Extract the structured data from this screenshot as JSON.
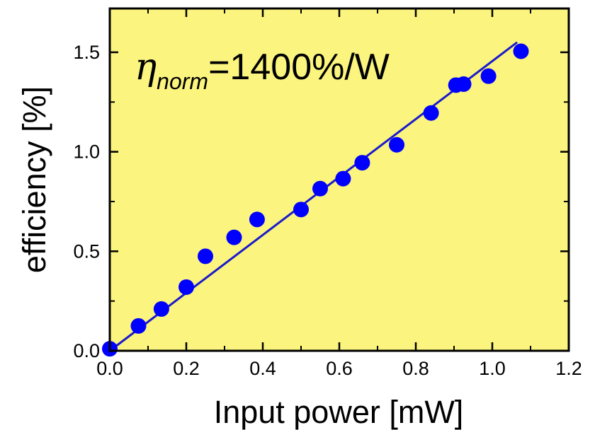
{
  "chart_data": {
    "type": "scatter",
    "xlabel": "Input power [mW]",
    "ylabel": "efficiency [%]",
    "xlim": [
      0.0,
      1.2
    ],
    "ylim": [
      0.0,
      1.72
    ],
    "xticks": [
      "0.0",
      "0.2",
      "0.4",
      "0.6",
      "0.8",
      "1.0",
      "1.2"
    ],
    "yticks": [
      "0.0",
      "0.5",
      "1.0",
      "1.5"
    ],
    "grid": false,
    "background_color": "#fbf47e",
    "marker_color": "#0000ff",
    "line_color": "#1a1acc",
    "annotation": {
      "symbol": "η",
      "subscript": "norm",
      "text": "=1400%/W"
    },
    "points": [
      {
        "x": 0.0,
        "y": 0.01
      },
      {
        "x": 0.075,
        "y": 0.125
      },
      {
        "x": 0.135,
        "y": 0.21
      },
      {
        "x": 0.2,
        "y": 0.32
      },
      {
        "x": 0.25,
        "y": 0.475
      },
      {
        "x": 0.325,
        "y": 0.57
      },
      {
        "x": 0.385,
        "y": 0.66
      },
      {
        "x": 0.5,
        "y": 0.71
      },
      {
        "x": 0.55,
        "y": 0.815
      },
      {
        "x": 0.61,
        "y": 0.865
      },
      {
        "x": 0.66,
        "y": 0.945
      },
      {
        "x": 0.75,
        "y": 1.035
      },
      {
        "x": 0.84,
        "y": 1.195
      },
      {
        "x": 0.905,
        "y": 1.335
      },
      {
        "x": 0.925,
        "y": 1.34
      },
      {
        "x": 0.99,
        "y": 1.38
      },
      {
        "x": 1.075,
        "y": 1.505
      }
    ],
    "fit_line": {
      "x": [
        0.0,
        1.065
      ],
      "y": [
        0.0,
        1.55
      ]
    }
  }
}
